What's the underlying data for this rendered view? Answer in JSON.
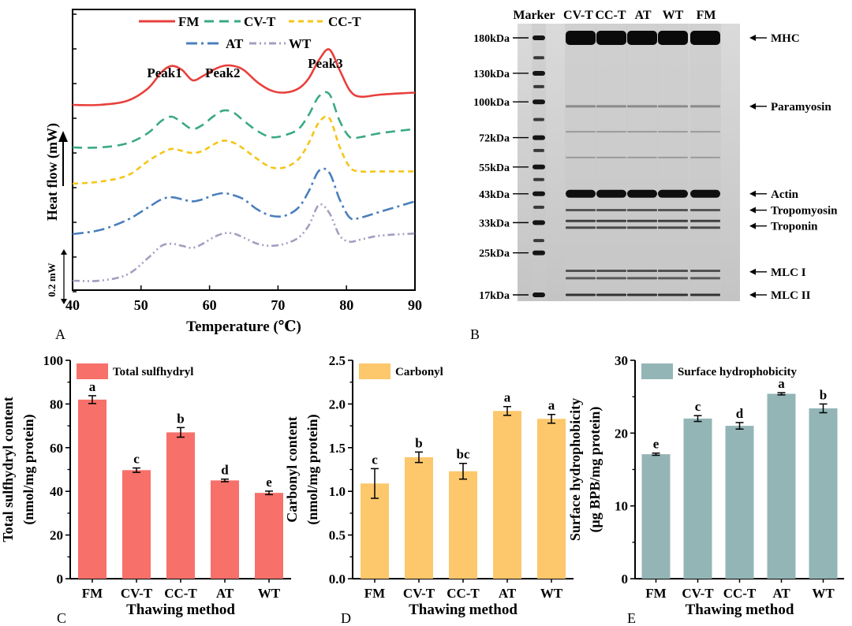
{
  "panel_letters": [
    "A",
    "B",
    "C",
    "D",
    "E"
  ],
  "chart_data": [
    {
      "panel": "A",
      "type": "line",
      "xlabel": "Temperature (℃)",
      "ylabel": "Heat flow (mW)",
      "xlim": [
        40,
        90
      ],
      "x_ticks": [
        40,
        50,
        60,
        70,
        80,
        90
      ],
      "scale_bar": "0.2 mW",
      "peak_labels": [
        "Peak1",
        "Peak2",
        "Peak3"
      ],
      "peak_x": [
        54,
        62.5,
        77.5
      ],
      "series": [
        {
          "name": "FM",
          "color": "#e8403c",
          "dash": "solid",
          "offset": 4,
          "x": [
            40,
            44,
            48,
            51,
            53,
            54.5,
            56,
            57.5,
            59,
            60.5,
            62,
            63.5,
            65,
            67,
            69,
            71,
            73,
            74.5,
            76,
            77.5,
            79,
            80.5,
            82,
            85,
            90
          ],
          "y": [
            0.0,
            0.0,
            0.02,
            0.08,
            0.16,
            0.19,
            0.17,
            0.12,
            0.14,
            0.17,
            0.19,
            0.19,
            0.17,
            0.11,
            0.07,
            0.06,
            0.08,
            0.13,
            0.22,
            0.27,
            0.17,
            0.07,
            0.04,
            0.05,
            0.06
          ]
        },
        {
          "name": "CV-T",
          "color": "#3aaa80",
          "dash": "12,7",
          "offset": 3,
          "x": [
            40,
            44,
            48,
            51,
            53,
            54.5,
            56,
            57.5,
            59,
            60.5,
            62,
            63.5,
            65,
            67,
            69,
            71,
            73,
            74.5,
            76,
            77.5,
            79,
            80.5,
            82,
            85,
            90
          ],
          "y": [
            0.0,
            0.0,
            0.02,
            0.07,
            0.13,
            0.15,
            0.12,
            0.09,
            0.11,
            0.15,
            0.18,
            0.17,
            0.13,
            0.08,
            0.05,
            0.06,
            0.09,
            0.16,
            0.25,
            0.26,
            0.13,
            0.05,
            0.05,
            0.07,
            0.09
          ]
        },
        {
          "name": "CC-T",
          "color": "#f5c518",
          "dash": "7,5",
          "offset": 2,
          "x": [
            40,
            44,
            48,
            51,
            53,
            54.5,
            56,
            57.5,
            59,
            60.5,
            62,
            63.5,
            65,
            67,
            69,
            71,
            73,
            74.5,
            76,
            77.5,
            79,
            80.5,
            82,
            85,
            90
          ],
          "y": [
            0.0,
            0.01,
            0.04,
            0.11,
            0.15,
            0.17,
            0.16,
            0.15,
            0.16,
            0.19,
            0.21,
            0.2,
            0.17,
            0.12,
            0.08,
            0.08,
            0.12,
            0.2,
            0.3,
            0.32,
            0.18,
            0.08,
            0.06,
            0.06,
            0.06
          ]
        },
        {
          "name": "AT",
          "color": "#4a7fbd",
          "dash": "14,5,3,5",
          "offset": 1,
          "x": [
            40,
            44,
            48,
            51,
            53,
            54.5,
            56,
            57.5,
            59,
            60.5,
            62,
            63.5,
            65,
            67,
            69,
            71,
            73,
            74.5,
            76,
            77.5,
            79,
            80.5,
            82,
            85,
            90
          ],
          "y": [
            0.0,
            0.02,
            0.07,
            0.13,
            0.17,
            0.18,
            0.17,
            0.16,
            0.17,
            0.19,
            0.2,
            0.19,
            0.17,
            0.12,
            0.09,
            0.09,
            0.13,
            0.21,
            0.31,
            0.3,
            0.17,
            0.08,
            0.08,
            0.11,
            0.16
          ]
        },
        {
          "name": "WT",
          "color": "#a39fc0",
          "dash": "9,4,2,4,2,4",
          "offset": 0,
          "x": [
            40,
            44,
            48,
            51,
            53,
            54.5,
            56,
            57.5,
            59,
            60.5,
            62,
            63.5,
            65,
            67,
            69,
            71,
            73,
            74.5,
            76,
            77.5,
            79,
            80.5,
            82,
            85,
            90
          ],
          "y": [
            0.0,
            0.0,
            0.03,
            0.11,
            0.17,
            0.18,
            0.17,
            0.16,
            0.18,
            0.21,
            0.23,
            0.23,
            0.21,
            0.18,
            0.17,
            0.18,
            0.21,
            0.27,
            0.37,
            0.33,
            0.22,
            0.19,
            0.2,
            0.22,
            0.23
          ]
        }
      ]
    },
    {
      "panel": "B",
      "type": "gel",
      "lanes": [
        "Marker",
        "CV-T",
        "CC-T",
        "AT",
        "WT",
        "FM"
      ],
      "marker_labels": [
        "180kDa",
        "130kDa",
        "100kDa",
        "72kDa",
        "55kDa",
        "43kDa",
        "33kDa",
        "25kDa",
        "17kDa"
      ],
      "marker_kda": [
        180,
        130,
        100,
        72,
        55,
        43,
        33,
        25,
        17
      ],
      "band_labels": [
        "MHC",
        "Paramyosin",
        "Actin",
        "Tropomyosin",
        "Troponin",
        "MLC I",
        "MLC II"
      ],
      "band_kda": [
        180,
        96,
        43,
        37,
        32,
        21,
        17
      ]
    },
    {
      "panel": "C",
      "type": "bar",
      "color": "#f7706a",
      "legend": "Total sulfhydryl",
      "categories": [
        "FM",
        "CV-T",
        "CC-T",
        "AT",
        "WT"
      ],
      "values": [
        82,
        49.7,
        67,
        45,
        39.3
      ],
      "errors": [
        1.8,
        1.0,
        2.2,
        0.6,
        0.8
      ],
      "letters": [
        "a",
        "c",
        "b",
        "d",
        "e"
      ],
      "ylim": [
        0,
        100
      ],
      "y_ticks": [
        0,
        20,
        40,
        60,
        80,
        100
      ],
      "xlabel": "Thawing method",
      "ylabel": [
        "Total sulfhydryl content",
        "(nmol/mg protein)"
      ]
    },
    {
      "panel": "D",
      "type": "bar",
      "color": "#fdc76b",
      "legend": "Carbonyl",
      "categories": [
        "FM",
        "CV-T",
        "CC-T",
        "AT",
        "WT"
      ],
      "values": [
        1.09,
        1.39,
        1.23,
        1.92,
        1.83
      ],
      "errors": [
        0.17,
        0.06,
        0.09,
        0.05,
        0.05
      ],
      "letters": [
        "c",
        "b",
        "bc",
        "a",
        "a"
      ],
      "ylim": [
        0,
        2.5
      ],
      "y_ticks": [
        "0.0",
        "0.5",
        "1.0",
        "1.5",
        "2.0",
        "2.5"
      ],
      "xlabel": "Thawing method",
      "ylabel": [
        "Carbonyl content",
        "(nmol/mg protein)"
      ]
    },
    {
      "panel": "E",
      "type": "bar",
      "color": "#93b5b6",
      "legend": "Surface hydrophobicity",
      "categories": [
        "FM",
        "CV-T",
        "CC-T",
        "AT",
        "WT"
      ],
      "values": [
        17.1,
        22.0,
        21.0,
        25.4,
        23.4
      ],
      "errors": [
        0.15,
        0.4,
        0.45,
        0.15,
        0.6
      ],
      "letters": [
        "e",
        "c",
        "d",
        "a",
        "b"
      ],
      "ylim": [
        0,
        30
      ],
      "y_ticks": [
        0,
        10,
        20,
        30
      ],
      "xlabel": "Thawing method",
      "ylabel": [
        "Surface hydrophobicity",
        "(μg BPB/mg protein)"
      ]
    }
  ]
}
